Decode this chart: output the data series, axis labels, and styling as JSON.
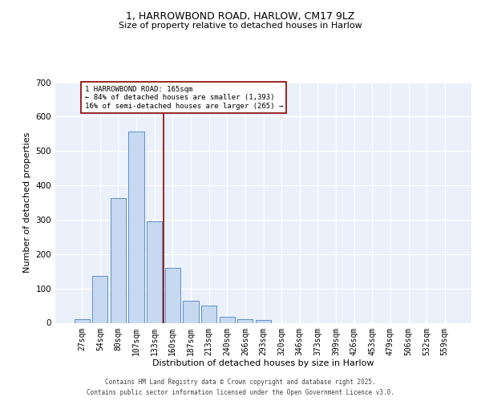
{
  "title_line1": "1, HARROWBOND ROAD, HARLOW, CM17 9LZ",
  "title_line2": "Size of property relative to detached houses in Harlow",
  "xlabel": "Distribution of detached houses by size in Harlow",
  "ylabel": "Number of detached properties",
  "bar_labels": [
    "27sqm",
    "54sqm",
    "80sqm",
    "107sqm",
    "133sqm",
    "160sqm",
    "187sqm",
    "213sqm",
    "240sqm",
    "266sqm",
    "293sqm",
    "320sqm",
    "346sqm",
    "373sqm",
    "399sqm",
    "426sqm",
    "453sqm",
    "479sqm",
    "506sqm",
    "532sqm",
    "559sqm"
  ],
  "bar_values": [
    10,
    137,
    362,
    557,
    295,
    160,
    65,
    50,
    18,
    10,
    8,
    0,
    0,
    0,
    0,
    0,
    0,
    0,
    0,
    0,
    0
  ],
  "bar_color": "#c6d9f1",
  "bar_edge_color": "#4f81bd",
  "background_color": "#eaf1fb",
  "grid_color": "#ffffff",
  "vline_x": 4.5,
  "vline_color": "#8b0000",
  "annotation_text": "1 HARROWBOND ROAD: 165sqm\n← 84% of detached houses are smaller (1,393)\n16% of semi-detached houses are larger (265) →",
  "annotation_box_facecolor": "#ffffff",
  "annotation_box_edgecolor": "#8b0000",
  "footer_text": "Contains HM Land Registry data © Crown copyright and database right 2025.\nContains public sector information licensed under the Open Government Licence v3.0.",
  "ylim_max": 700,
  "yticks": [
    0,
    100,
    200,
    300,
    400,
    500,
    600,
    700
  ],
  "title1_fontsize": 9,
  "title2_fontsize": 8,
  "tick_fontsize": 7,
  "label_fontsize": 8,
  "annot_fontsize": 6.5,
  "footer_fontsize": 5.5
}
